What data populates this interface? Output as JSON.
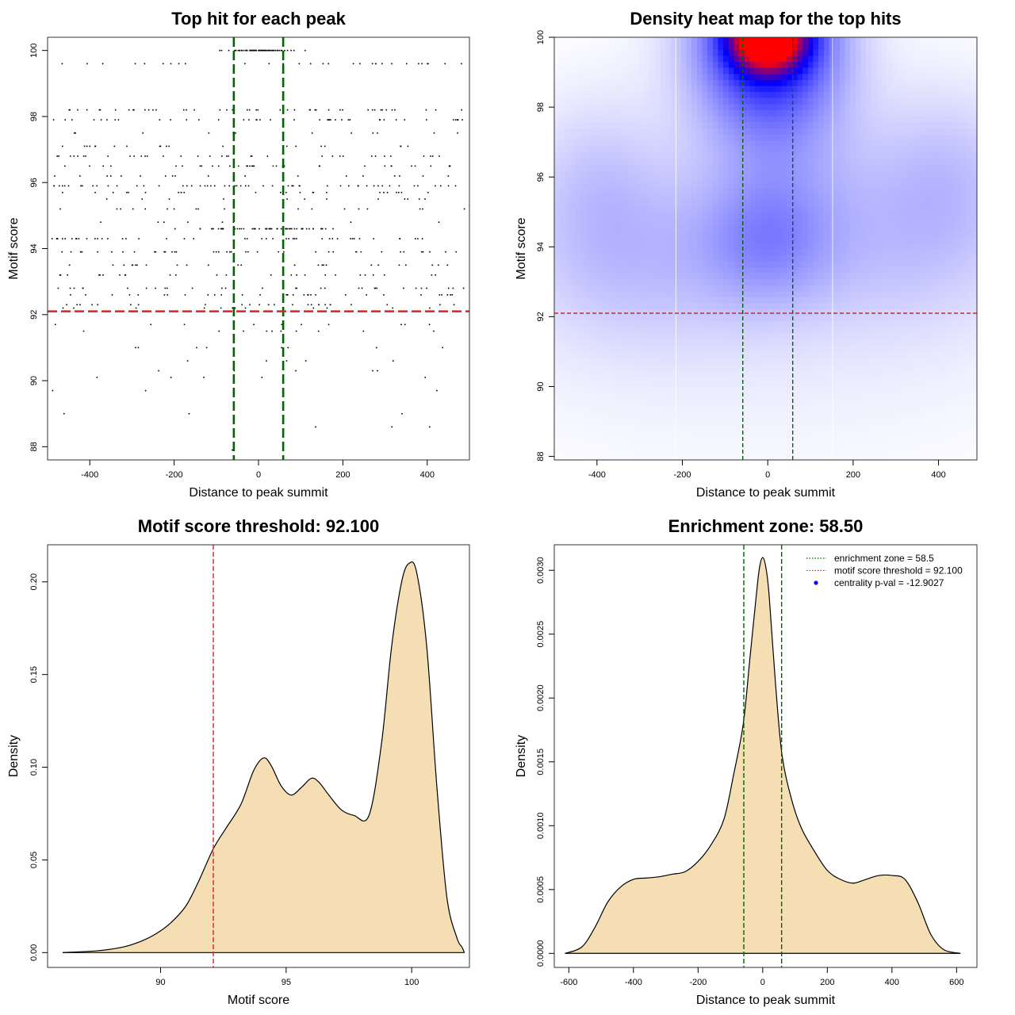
{
  "chart_data": [
    {
      "id": "scatter",
      "type": "scatter",
      "title": "Top hit for each peak",
      "xlabel": "Distance to peak summit",
      "ylabel": "Motif score",
      "xlim": [
        -500,
        500
      ],
      "ylim": [
        87.6,
        100.4
      ],
      "xticks": [
        -400,
        -200,
        0,
        200,
        400
      ],
      "yticks": [
        88,
        90,
        92,
        94,
        96,
        98,
        100
      ],
      "xtick_labels": [
        "-400",
        "-200",
        "0",
        "200",
        "400"
      ],
      "ytick_labels": [
        "88",
        "90",
        "92",
        "94",
        "96",
        "98",
        "100"
      ],
      "vlines": [
        -58.5,
        58.5
      ],
      "hline": 92.1,
      "line_colors": {
        "enrichment": "#006400",
        "threshold": "#dd2222"
      },
      "point_color": "#000000",
      "score_levels": [
        100,
        99.6,
        98.2,
        97.9,
        97.5,
        97.1,
        96.8,
        96.5,
        96.2,
        95.9,
        95.7,
        95.5,
        95.2,
        94.8,
        94.6,
        94.3,
        93.9,
        93.5,
        93.2,
        92.8,
        92.6,
        92.3,
        92.2,
        91.7,
        91.5,
        91.0,
        90.6,
        90.3,
        90.1,
        89.7,
        89.0,
        88.6,
        87.9
      ],
      "level_counts": [
        75,
        30,
        45,
        40,
        12,
        20,
        35,
        35,
        18,
        55,
        25,
        12,
        18,
        8,
        55,
        45,
        40,
        25,
        25,
        30,
        30,
        25,
        12,
        10,
        10,
        8,
        5,
        5,
        5,
        3,
        3,
        3,
        1
      ],
      "level_spread": [
        110,
        380,
        380,
        380,
        380,
        380,
        380,
        380,
        380,
        380,
        380,
        380,
        380,
        380,
        200,
        380,
        380,
        380,
        380,
        380,
        380,
        380,
        380,
        380,
        380,
        380,
        380,
        380,
        380,
        380,
        380,
        380,
        380
      ],
      "n_points": 1000
    },
    {
      "id": "heatmap",
      "type": "heatmap",
      "title": "Density heat map for the top hits",
      "xlabel": "Distance to peak summit",
      "ylabel": "Motif score",
      "xlim": [
        -500,
        490
      ],
      "ylim": [
        87.9,
        100
      ],
      "xticks": [
        -400,
        -200,
        0,
        200,
        400
      ],
      "yticks": [
        88,
        90,
        92,
        94,
        96,
        98,
        100
      ],
      "xtick_labels": [
        "-400",
        "-200",
        "0",
        "200",
        "400"
      ],
      "ytick_labels": [
        "88",
        "90",
        "92",
        "94",
        "96",
        "98",
        "100"
      ],
      "vlines": [
        -58.5,
        58.5
      ],
      "hline": 92.1,
      "white_lines": [
        -215,
        152
      ],
      "colors": {
        "low": "#ffffff",
        "mid": "#0000ff",
        "high": "#ff0000"
      },
      "density_peaks": [
        {
          "x": 0,
          "y": 100,
          "sx": 55,
          "sy": 0.6,
          "w": 1.0
        },
        {
          "x": 0,
          "y": 100,
          "sx": 120,
          "sy": 1.7,
          "w": 0.55
        },
        {
          "x": 0,
          "y": 94.2,
          "sx": 110,
          "sy": 1.3,
          "w": 0.16
        },
        {
          "x": 30,
          "y": 96.8,
          "sx": 140,
          "sy": 1.6,
          "w": 0.1
        },
        {
          "x": -400,
          "y": 96,
          "sx": 120,
          "sy": 1.8,
          "w": 0.09
        },
        {
          "x": 420,
          "y": 96.3,
          "sx": 130,
          "sy": 1.8,
          "w": 0.1
        },
        {
          "x": -300,
          "y": 93.6,
          "sx": 200,
          "sy": 1.8,
          "w": 0.09
        },
        {
          "x": 300,
          "y": 94.1,
          "sx": 220,
          "sy": 1.8,
          "w": 0.08
        },
        {
          "x": 0,
          "y": 92.5,
          "sx": 500,
          "sy": 3.0,
          "w": 0.05
        }
      ]
    },
    {
      "id": "score-density",
      "type": "area",
      "title": "Motif score threshold: 92.100",
      "xlabel": "Motif score",
      "ylabel": "Density",
      "xlim": [
        85.5,
        102.3
      ],
      "ylim": [
        -0.008,
        0.22
      ],
      "xticks": [
        90,
        95,
        100
      ],
      "yticks": [
        0,
        0.05,
        0.1,
        0.15,
        0.2
      ],
      "xtick_labels": [
        "90",
        "95",
        "100"
      ],
      "ytick_labels": [
        "0.00",
        "0.05",
        "0.10",
        "0.15",
        "0.20"
      ],
      "vline": 92.1,
      "fill": "#f5deb3",
      "x": [
        86.1,
        87.5,
        88.5,
        89.2,
        89.8,
        90.4,
        91.0,
        91.5,
        92.1,
        92.6,
        93.2,
        93.7,
        94.1,
        94.4,
        94.8,
        95.2,
        95.6,
        96.0,
        96.3,
        96.7,
        97.2,
        97.7,
        98.3,
        98.8,
        99.2,
        99.6,
        99.9,
        100.2,
        100.6,
        101.0,
        101.4,
        101.8,
        102.0,
        102.1
      ],
      "y": [
        0.0,
        0.001,
        0.003,
        0.006,
        0.01,
        0.016,
        0.025,
        0.038,
        0.056,
        0.067,
        0.08,
        0.098,
        0.105,
        0.101,
        0.09,
        0.085,
        0.089,
        0.094,
        0.092,
        0.085,
        0.077,
        0.074,
        0.074,
        0.113,
        0.165,
        0.2,
        0.21,
        0.205,
        0.165,
        0.09,
        0.03,
        0.008,
        0.003,
        0.0
      ]
    },
    {
      "id": "distance-density",
      "type": "area",
      "title": "Enrichment zone: 58.50",
      "xlabel": "Distance to peak summit",
      "ylabel": "Density",
      "xlim": [
        -645,
        663
      ],
      "ylim": [
        -0.00011,
        0.0032
      ],
      "xticks": [
        -600,
        -400,
        -200,
        0,
        200,
        400,
        600
      ],
      "yticks": [
        0,
        0.0005,
        0.001,
        0.0015,
        0.002,
        0.0025,
        0.003
      ],
      "xtick_labels": [
        "-600",
        "-400",
        "-200",
        "0",
        "200",
        "400",
        "600"
      ],
      "ytick_labels": [
        "0.0000",
        "0.0005",
        "0.0010",
        "0.0015",
        "0.0020",
        "0.0025",
        "0.0030"
      ],
      "vlines": [
        -58.5,
        58.5
      ],
      "fill": "#f5deb3",
      "x": [
        -612,
        -560,
        -520,
        -480,
        -440,
        -400,
        -360,
        -320,
        -280,
        -240,
        -200,
        -160,
        -120,
        -90,
        -60,
        -40,
        -20,
        -10,
        0,
        10,
        20,
        40,
        60,
        90,
        120,
        160,
        200,
        240,
        280,
        320,
        360,
        400,
        440,
        480,
        520,
        560,
        612
      ],
      "y": [
        0.0,
        5e-05,
        0.0002,
        0.0004,
        0.00052,
        0.00058,
        0.00059,
        0.0006,
        0.00062,
        0.00064,
        0.00072,
        0.00085,
        0.00105,
        0.0014,
        0.0018,
        0.0023,
        0.0028,
        0.00302,
        0.0031,
        0.00302,
        0.0028,
        0.0021,
        0.00155,
        0.0012,
        0.00098,
        0.0008,
        0.00065,
        0.00058,
        0.00055,
        0.00058,
        0.00061,
        0.00061,
        0.00058,
        0.0004,
        0.00015,
        3e-05,
        0.0
      ],
      "legend": [
        {
          "label": "enrichment zone = 58.5",
          "style": "dotted",
          "color": "#006400"
        },
        {
          "label": "motif score threshold = 92.100",
          "style": "dotted",
          "color": "#dd2222"
        },
        {
          "label": "centrality p-val = -12.9027",
          "style": "point",
          "color": "#0000ff"
        }
      ]
    }
  ]
}
